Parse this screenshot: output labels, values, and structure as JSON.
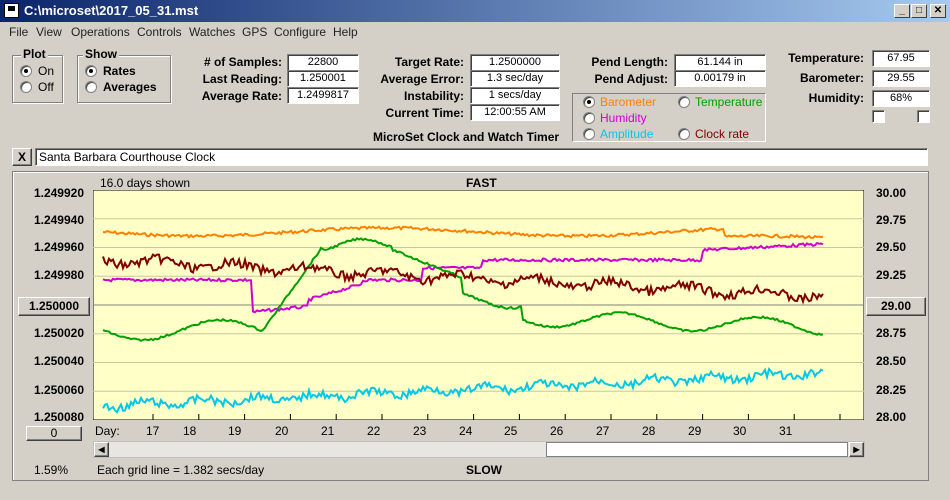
{
  "title": "C:\\microset\\2017_05_31.mst",
  "menu": [
    "File",
    "View",
    "Operations",
    "Controls",
    "Watches",
    "GPS",
    "Configure",
    "Help"
  ],
  "window_buttons": {
    "minimize": "_",
    "maximize": "□",
    "close": "✕"
  },
  "plot_group": {
    "title": "Plot",
    "on": "On",
    "off": "Off",
    "selected": "On"
  },
  "show_group": {
    "title": "Show",
    "rates": "Rates",
    "averages": "Averages",
    "selected": "Rates"
  },
  "stats": {
    "samples_label": "# of Samples:",
    "samples": "22800",
    "last_reading_label": "Last Reading:",
    "last_reading": "1.250001",
    "average_rate_label": "Average Rate:",
    "average_rate": "1.2499817"
  },
  "targets": {
    "target_rate_label": "Target Rate:",
    "target_rate": "1.2500000",
    "average_error_label": "Average Error:",
    "average_error": "1.3 sec/day",
    "instability_label": "Instability:",
    "instability": "1 secs/day",
    "current_time_label": "Current Time:",
    "current_time": "12:00:55 AM"
  },
  "heading": "MicroSet Clock and Watch Timer",
  "pendulum": {
    "length_label": "Pend Length:",
    "length": "61.144 in",
    "adjust_label": "Pend Adjust:",
    "adjust": "0.00179 in"
  },
  "sensor_options": [
    {
      "label": "Barometer",
      "color": "#ff8000",
      "selected": true
    },
    {
      "label": "Temperature",
      "color": "#00a000",
      "selected": false
    },
    {
      "label": "Humidity",
      "color": "#d000d0",
      "selected": false
    },
    {
      "label": "Amplitude",
      "color": "#00c8e8",
      "selected": false
    },
    {
      "label": "Clock rate",
      "color": "#800000",
      "selected": false
    }
  ],
  "environment": {
    "temperature_label": "Temperature:",
    "temperature": "67.95",
    "barometer_label": "Barometer:",
    "barometer": "29.55",
    "humidity_label": "Humidity:",
    "humidity": "68%"
  },
  "clock_name": "Santa Barbara Courthouse Clock",
  "clear_button": "X",
  "plot": {
    "days_shown": "16.0 days shown",
    "top_label": "FAST",
    "bottom_label": "SLOW",
    "left_axis": [
      "1.249920",
      "1.249940",
      "1.249960",
      "1.249980",
      "1.250000",
      "1.250020",
      "1.250040",
      "1.250060",
      "1.250080"
    ],
    "right_axis": [
      "30.00",
      "29.75",
      "29.50",
      "29.25",
      "29.00",
      "28.75",
      "28.50",
      "28.25",
      "28.00"
    ],
    "center_left_button": "1.250000",
    "center_right_button": "29.00",
    "zero_button": "0",
    "day_label": "Day:",
    "days": [
      "17",
      "18",
      "19",
      "20",
      "21",
      "22",
      "23",
      "24",
      "25",
      "26",
      "27",
      "28",
      "29",
      "30",
      "31"
    ],
    "grid_note": "Each grid line = 1.382 secs/day",
    "percent": "1.59%"
  },
  "colors": {
    "plot_bg": "#ffffc8",
    "barometer": "#ff8000",
    "temperature": "#00a000",
    "humidity": "#d000d0",
    "amplitude": "#00c8e8",
    "clock_rate": "#800000",
    "title_bar": "#0a246a"
  }
}
